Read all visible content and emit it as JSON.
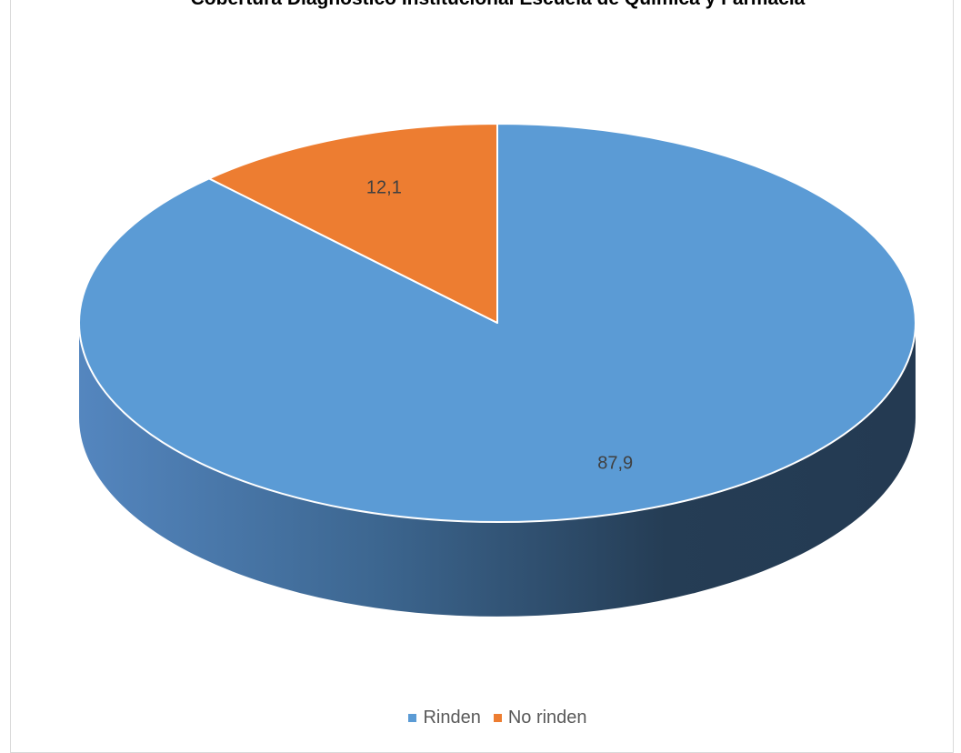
{
  "chart_data": {
    "type": "pie",
    "title": "Cobertura Diagnóstico Institucional Escuela de Química y Farmacia",
    "categories": [
      "Rinden",
      "No rinden"
    ],
    "values": [
      87.9,
      12.1
    ],
    "data_labels": [
      "87,9",
      "12,1"
    ],
    "colors": [
      "#5b9bd5",
      "#ed7d31"
    ],
    "legend_position": "bottom",
    "style": "3d-pie"
  }
}
